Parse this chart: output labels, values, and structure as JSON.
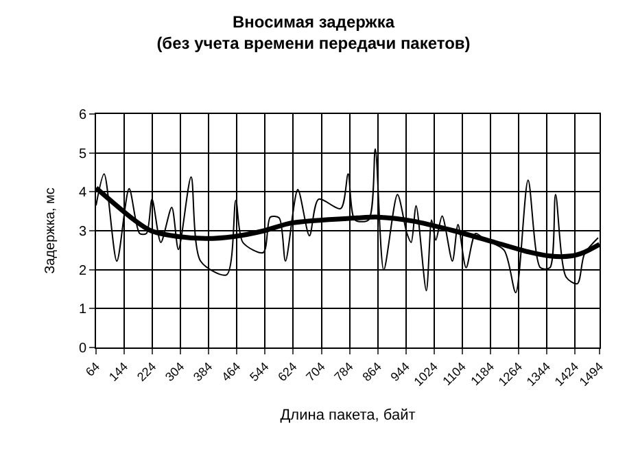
{
  "chart_data": {
    "type": "line",
    "title": "Вносимая задержка\n(без учета времени передачи пакетов)",
    "xlabel": "Длина пакета, байт",
    "ylabel": "Задержка, мс",
    "xlim": [
      64,
      1494
    ],
    "xticks": [
      64,
      144,
      224,
      304,
      384,
      464,
      544,
      624,
      704,
      784,
      864,
      944,
      1024,
      1104,
      1184,
      1264,
      1344,
      1424,
      1494
    ],
    "ylim": [
      0,
      6
    ],
    "yticks": [
      0,
      1,
      2,
      3,
      4,
      5,
      6
    ],
    "grid": true,
    "marker": "none",
    "line_style": "solid",
    "series": [
      {
        "color": "#000000",
        "x": [
          64,
          87,
          123,
          158,
          188,
          207,
          223,
          248,
          279,
          298,
          334,
          361,
          435,
          461,
          481,
          539,
          559,
          584,
          602,
          637,
          670,
          696,
          759,
          780,
          799,
          838,
          857,
          881,
          920,
          947,
          959,
          973,
          1002,
          1017,
          1029,
          1047,
          1076,
          1092,
          1115,
          1142,
          1170,
          1223,
          1256,
          1291,
          1326,
          1353,
          1369,
          1399,
          1431,
          1451,
          1490
        ],
        "values": [
          3.65,
          4.46,
          2.22,
          4.08,
          2.93,
          2.93,
          3.81,
          2.7,
          3.6,
          2.52,
          4.38,
          2.22,
          1.87,
          3.78,
          2.7,
          2.44,
          3.35,
          3.33,
          2.22,
          4.06,
          2.87,
          3.81,
          3.57,
          4.46,
          3.28,
          3.28,
          5.1,
          1.99,
          3.93,
          2.93,
          2.7,
          3.64,
          1.46,
          3.28,
          2.76,
          3.38,
          2.22,
          3.16,
          2.05,
          2.93,
          2.76,
          2.5,
          1.41,
          4.3,
          2.05,
          2.05,
          3.93,
          1.81,
          1.64,
          2.4,
          2.82
        ]
      },
      {
        "color": "#000000",
        "x": [
          64,
          169,
          220,
          298,
          377,
          455,
          541,
          619,
          806,
          865,
          963,
          1080,
          1197,
          1295,
          1353,
          1412,
          1451,
          1494
        ],
        "values": [
          4.1,
          3.3,
          3.0,
          2.85,
          2.8,
          2.85,
          3.0,
          3.2,
          3.33,
          3.35,
          3.25,
          3.0,
          2.7,
          2.45,
          2.35,
          2.35,
          2.45,
          2.65
        ]
      }
    ]
  }
}
